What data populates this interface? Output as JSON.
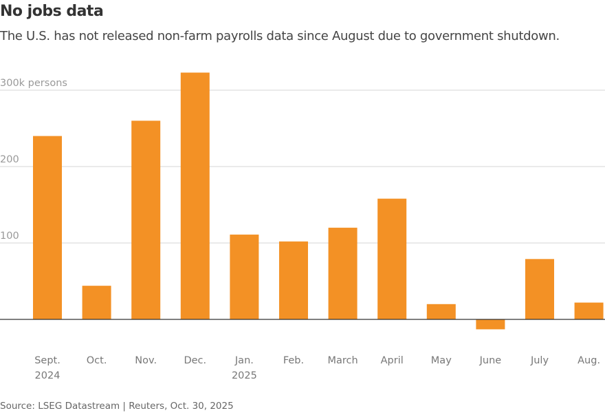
{
  "chart_data": {
    "type": "bar",
    "title": "No jobs data",
    "subtitle": "The U.S. has not released non-farm payrolls data since August due to government shutdown.",
    "source": "Source: LSEG Datastream | Reuters, Oct. 30, 2025",
    "categories": [
      [
        "Sept.",
        "2024"
      ],
      [
        "Oct."
      ],
      [
        "Nov."
      ],
      [
        "Dec."
      ],
      [
        "Jan.",
        "2025"
      ],
      [
        "Feb."
      ],
      [
        "March"
      ],
      [
        "April"
      ],
      [
        "May"
      ],
      [
        "June"
      ],
      [
        "July"
      ],
      [
        "Aug."
      ]
    ],
    "values": [
      240,
      44,
      260,
      323,
      111,
      102,
      120,
      158,
      20,
      -13,
      79,
      22
    ],
    "yticks": [
      {
        "value": 100,
        "label": "100"
      },
      {
        "value": 200,
        "label": "200"
      },
      {
        "value": 300,
        "label": "300k persons"
      }
    ],
    "ylim": [
      -20,
      330
    ],
    "grid": true,
    "colors": {
      "bar": "#f39125",
      "grid": "#d6d6d6",
      "axis": "#333333"
    }
  }
}
